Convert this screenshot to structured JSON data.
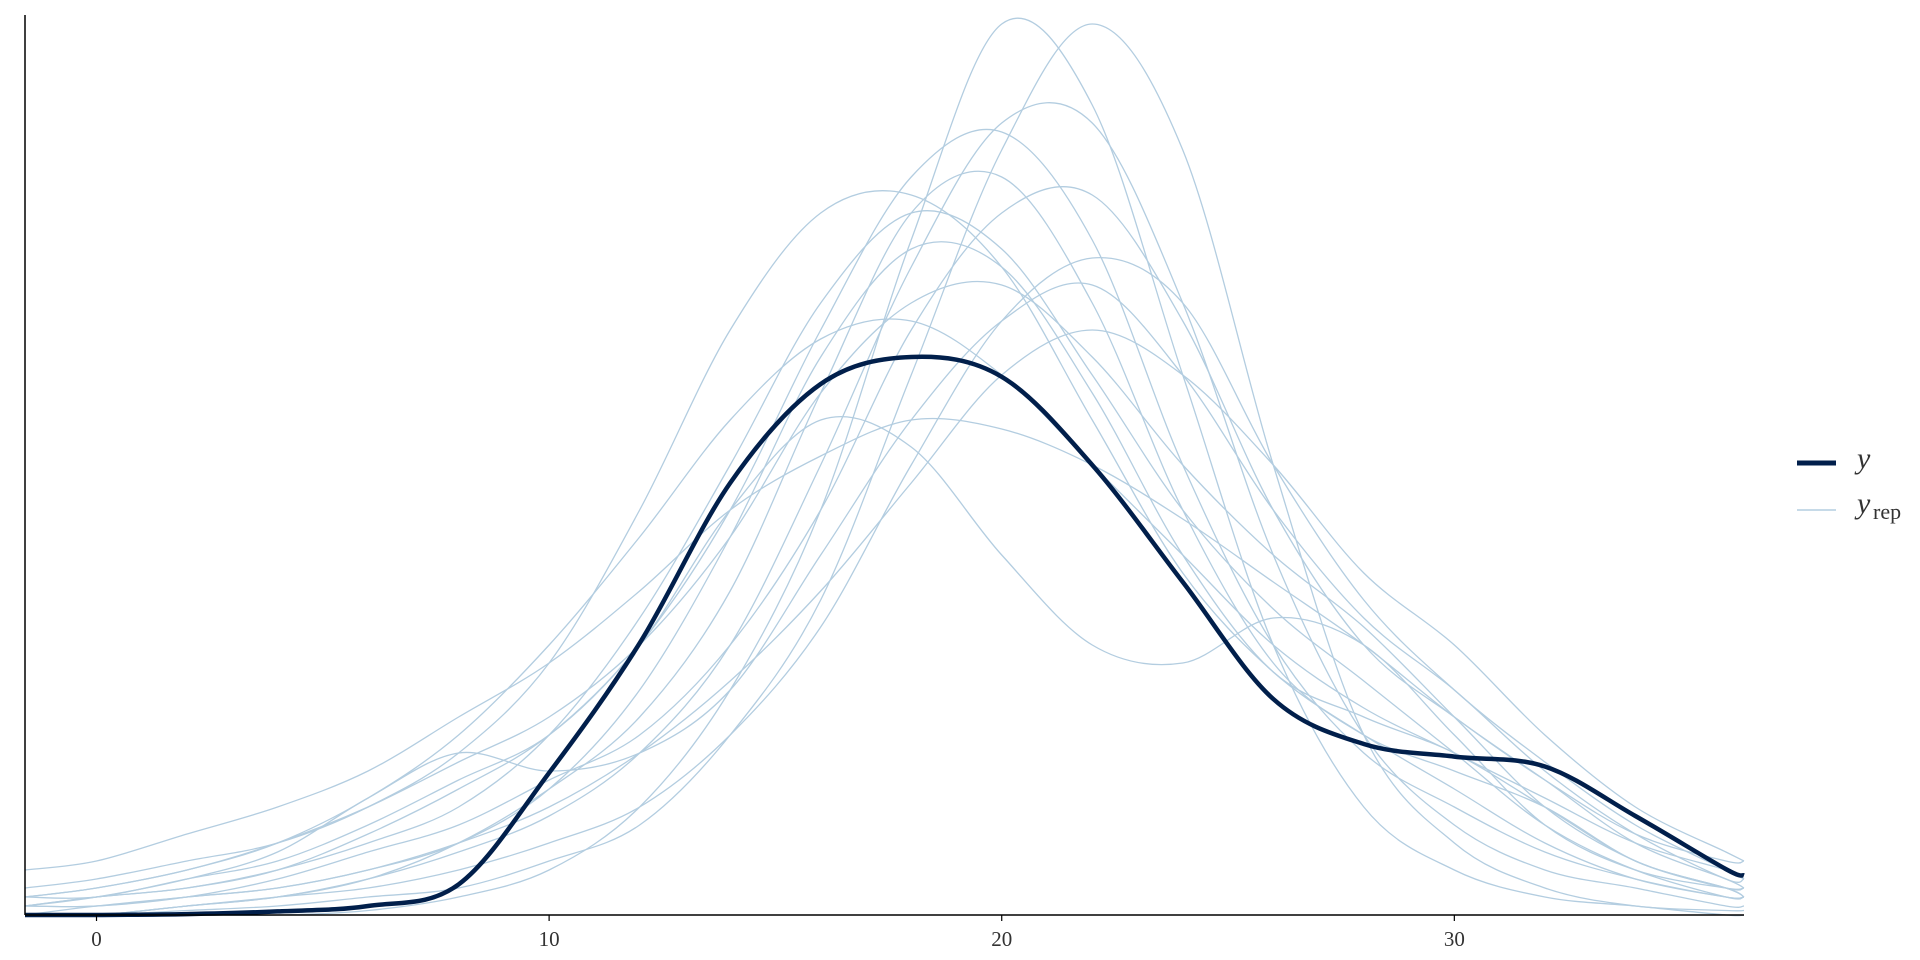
{
  "chart_data": {
    "type": "density-overlay",
    "x": [
      -1.58,
      0,
      2,
      4,
      6,
      8,
      10,
      12,
      14,
      16,
      18,
      20,
      22,
      24,
      26,
      28,
      30,
      32,
      34,
      36,
      36.4
    ],
    "xlim": [
      -1.58,
      36.4
    ],
    "xticks": [
      0,
      10,
      20,
      30
    ],
    "ylim": [
      0,
      0.1
    ],
    "series": [
      {
        "name": "y",
        "color": "#011f4b",
        "values": [
          0,
          0,
          0.0001,
          0.0004,
          0.001,
          0.0034,
          0.0158,
          0.0302,
          0.048,
          0.059,
          0.062,
          0.0598,
          0.05,
          0.037,
          0.024,
          0.019,
          0.0176,
          0.0165,
          0.011,
          0.0051,
          0.0044
        ]
      }
    ],
    "replicates": {
      "name": "y",
      "subscript": "rep",
      "color": "#b3cde0",
      "series": [
        [
          0,
          0,
          0,
          0,
          0.0005,
          0.002,
          0.005,
          0.012,
          0.025,
          0.045,
          0.075,
          0.099,
          0.09,
          0.06,
          0.03,
          0.012,
          0.005,
          0.002,
          0.001,
          0,
          0
        ],
        [
          0,
          0,
          0.0005,
          0.001,
          0.002,
          0.003,
          0.006,
          0.01,
          0.02,
          0.035,
          0.06,
          0.085,
          0.099,
          0.085,
          0.05,
          0.02,
          0.008,
          0.003,
          0.001,
          0.0005,
          0.0005
        ],
        [
          0.003,
          0.004,
          0.006,
          0.008,
          0.012,
          0.018,
          0.028,
          0.045,
          0.065,
          0.078,
          0.08,
          0.072,
          0.055,
          0.038,
          0.027,
          0.02,
          0.014,
          0.008,
          0.004,
          0.002,
          0.002
        ],
        [
          0.002,
          0.002,
          0.004,
          0.006,
          0.01,
          0.015,
          0.02,
          0.03,
          0.045,
          0.065,
          0.082,
          0.087,
          0.075,
          0.05,
          0.03,
          0.018,
          0.012,
          0.007,
          0.004,
          0.002,
          0.002
        ],
        [
          0.005,
          0.006,
          0.009,
          0.012,
          0.016,
          0.022,
          0.028,
          0.036,
          0.045,
          0.051,
          0.055,
          0.054,
          0.05,
          0.044,
          0.037,
          0.03,
          0.022,
          0.015,
          0.009,
          0.006,
          0.006
        ],
        [
          0.001,
          0.001,
          0.002,
          0.004,
          0.007,
          0.01,
          0.015,
          0.02,
          0.03,
          0.045,
          0.065,
          0.078,
          0.08,
          0.066,
          0.045,
          0.03,
          0.022,
          0.015,
          0.008,
          0.004,
          0.003
        ],
        [
          0,
          0.001,
          0.002,
          0.003,
          0.005,
          0.008,
          0.014,
          0.025,
          0.042,
          0.062,
          0.074,
          0.072,
          0.058,
          0.04,
          0.027,
          0.022,
          0.018,
          0.012,
          0.006,
          0.003,
          0.002
        ],
        [
          0.002,
          0.003,
          0.005,
          0.008,
          0.012,
          0.017,
          0.022,
          0.03,
          0.042,
          0.058,
          0.068,
          0.07,
          0.062,
          0.05,
          0.04,
          0.032,
          0.022,
          0.012,
          0.006,
          0.003,
          0.003
        ],
        [
          0.001,
          0.002,
          0.003,
          0.005,
          0.009,
          0.014,
          0.02,
          0.03,
          0.045,
          0.055,
          0.052,
          0.04,
          0.03,
          0.028,
          0.033,
          0.03,
          0.02,
          0.01,
          0.005,
          0.003,
          0.003
        ],
        [
          0.001,
          0.001,
          0.002,
          0.003,
          0.005,
          0.008,
          0.012,
          0.018,
          0.026,
          0.036,
          0.048,
          0.06,
          0.065,
          0.06,
          0.05,
          0.038,
          0.03,
          0.02,
          0.012,
          0.007,
          0.006
        ],
        [
          0,
          0,
          0.001,
          0.002,
          0.004,
          0.007,
          0.011,
          0.018,
          0.03,
          0.05,
          0.072,
          0.088,
          0.088,
          0.068,
          0.04,
          0.02,
          0.01,
          0.005,
          0.003,
          0.001,
          0.001
        ],
        [
          0.001,
          0.002,
          0.003,
          0.005,
          0.008,
          0.012,
          0.02,
          0.033,
          0.05,
          0.068,
          0.078,
          0.074,
          0.06,
          0.045,
          0.034,
          0.026,
          0.018,
          0.01,
          0.005,
          0.002,
          0.002
        ],
        [
          0.001,
          0.002,
          0.004,
          0.007,
          0.013,
          0.018,
          0.016,
          0.018,
          0.025,
          0.04,
          0.055,
          0.066,
          0.07,
          0.06,
          0.045,
          0.033,
          0.025,
          0.016,
          0.009,
          0.004,
          0.004
        ],
        [
          0,
          0,
          0.001,
          0.002,
          0.004,
          0.008,
          0.014,
          0.022,
          0.036,
          0.058,
          0.078,
          0.082,
          0.068,
          0.045,
          0.028,
          0.02,
          0.016,
          0.012,
          0.006,
          0.003,
          0.002
        ],
        [
          0.002,
          0.003,
          0.005,
          0.008,
          0.013,
          0.02,
          0.03,
          0.042,
          0.055,
          0.064,
          0.066,
          0.06,
          0.05,
          0.04,
          0.03,
          0.023,
          0.018,
          0.013,
          0.008,
          0.005,
          0.004
        ],
        [
          0,
          0,
          0.001,
          0.002,
          0.003,
          0.005,
          0.008,
          0.012,
          0.02,
          0.032,
          0.05,
          0.066,
          0.073,
          0.068,
          0.05,
          0.035,
          0.025,
          0.017,
          0.01,
          0.005,
          0.004
        ]
      ]
    }
  }
}
